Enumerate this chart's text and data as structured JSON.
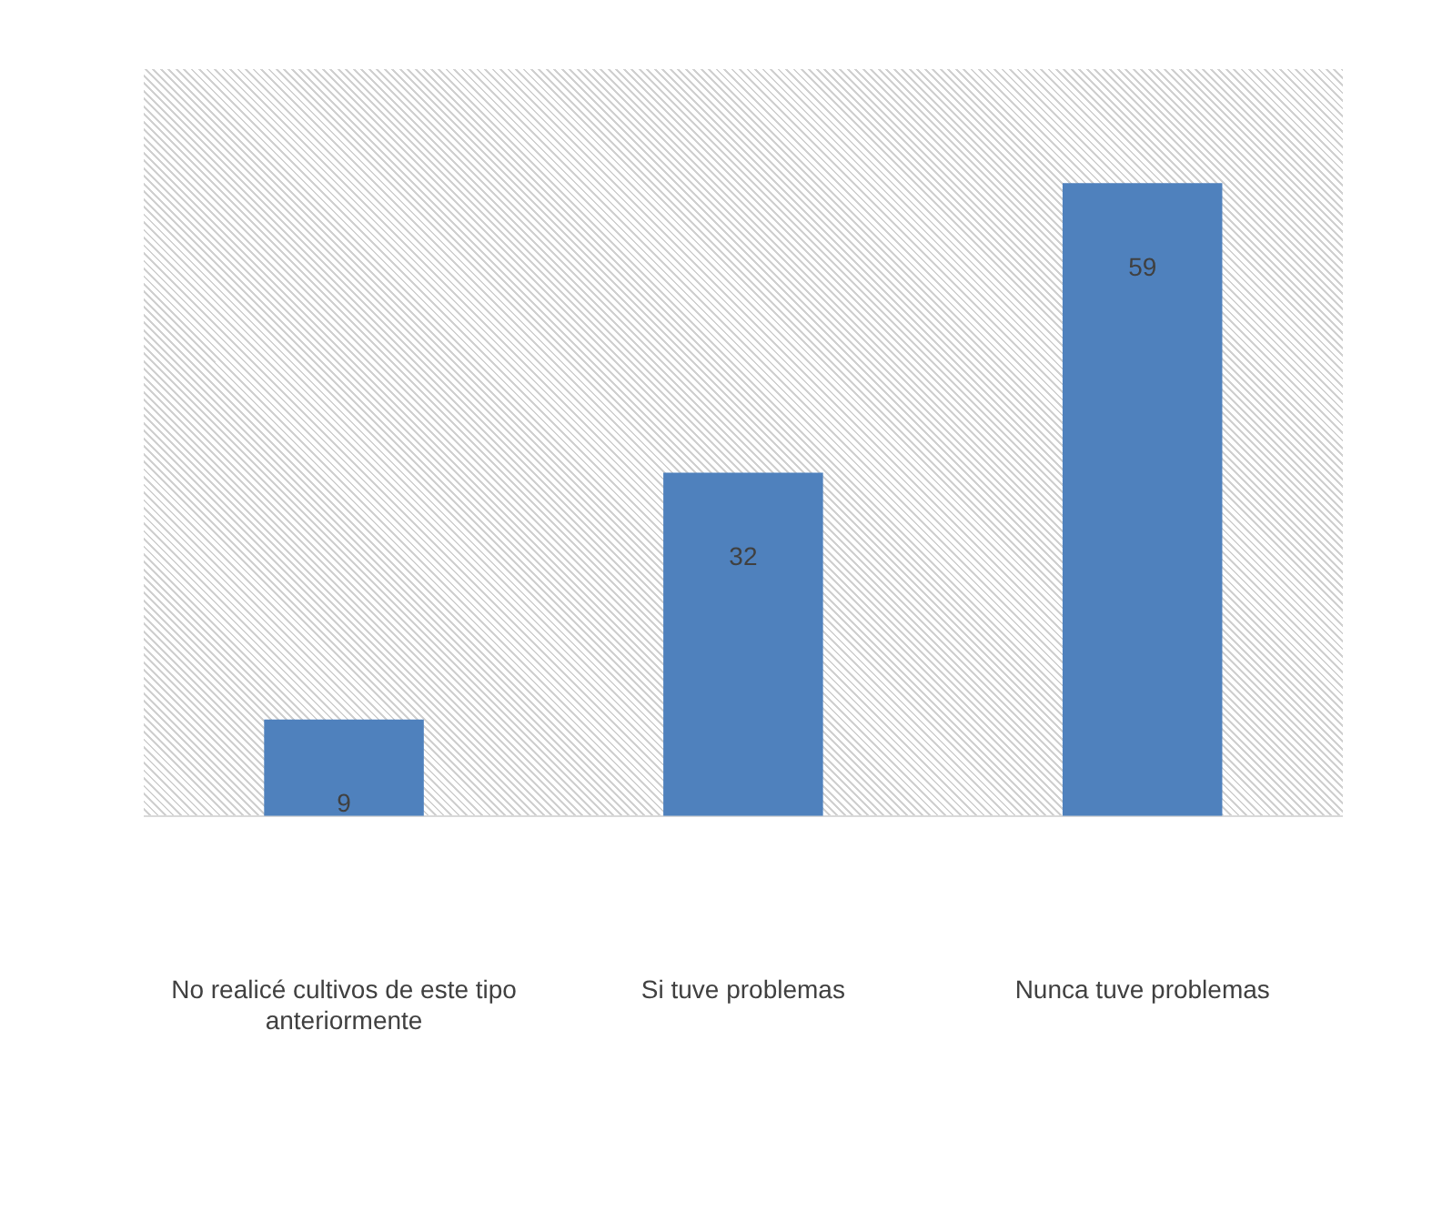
{
  "chart_data": {
    "type": "bar",
    "categories": [
      "No realicé cultivos de este tipo anteriormente",
      "Si tuve problemas",
      "Nunca tuve problemas"
    ],
    "values": [
      9,
      32,
      59
    ],
    "color": "#4f81bd",
    "data_labels": true,
    "grid": false,
    "legend": false
  }
}
